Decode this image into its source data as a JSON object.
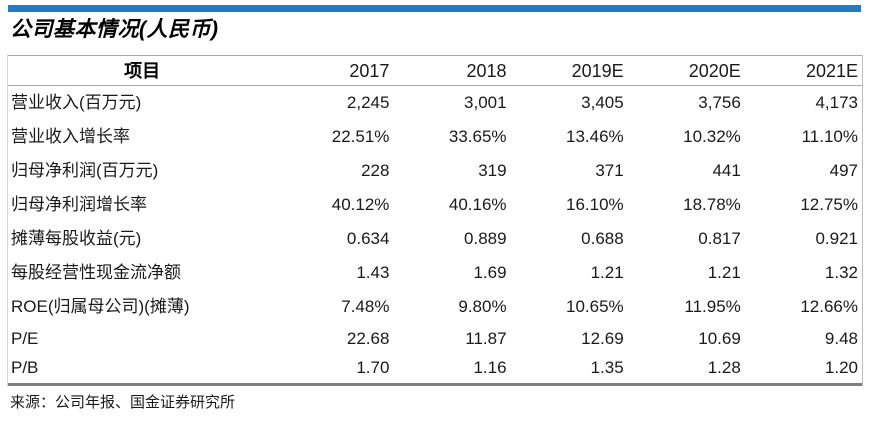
{
  "title": "公司基本情况(人民币)",
  "source_note": "来源：公司年报、国金证券研究所",
  "colors": {
    "accent_bar": "#1f7cc5",
    "header_rule": "#a9a9a9",
    "bottom_rule": "#7f7f7f",
    "text": "#1a1a1a"
  },
  "table": {
    "header": [
      "项目",
      "2017",
      "2018",
      "2019E",
      "2020E",
      "2021E"
    ],
    "rows": [
      {
        "label": "营业收入(百万元)",
        "values": [
          "2,245",
          "3,001",
          "3,405",
          "3,756",
          "4,173"
        ]
      },
      {
        "label": "营业收入增长率",
        "values": [
          "22.51%",
          "33.65%",
          "13.46%",
          "10.32%",
          "11.10%"
        ]
      },
      {
        "label": "归母净利润(百万元)",
        "values": [
          "228",
          "319",
          "371",
          "441",
          "497"
        ]
      },
      {
        "label": "归母净利润增长率",
        "values": [
          "40.12%",
          "40.16%",
          "16.10%",
          "18.78%",
          "12.75%"
        ]
      },
      {
        "label": "摊薄每股收益(元)",
        "values": [
          "0.634",
          "0.889",
          "0.688",
          "0.817",
          "0.921"
        ]
      },
      {
        "label": "每股经营性现金流净额",
        "values": [
          "1.43",
          "1.69",
          "1.21",
          "1.21",
          "1.32"
        ]
      },
      {
        "label": "ROE(归属母公司)(摊薄)",
        "values": [
          "7.48%",
          "9.80%",
          "10.65%",
          "11.95%",
          "12.66%"
        ]
      },
      {
        "label": "P/E",
        "values": [
          "22.68",
          "11.87",
          "12.69",
          "10.69",
          "9.48"
        ]
      },
      {
        "label": "P/B",
        "values": [
          "1.70",
          "1.16",
          "1.35",
          "1.28",
          "1.20"
        ]
      }
    ]
  }
}
